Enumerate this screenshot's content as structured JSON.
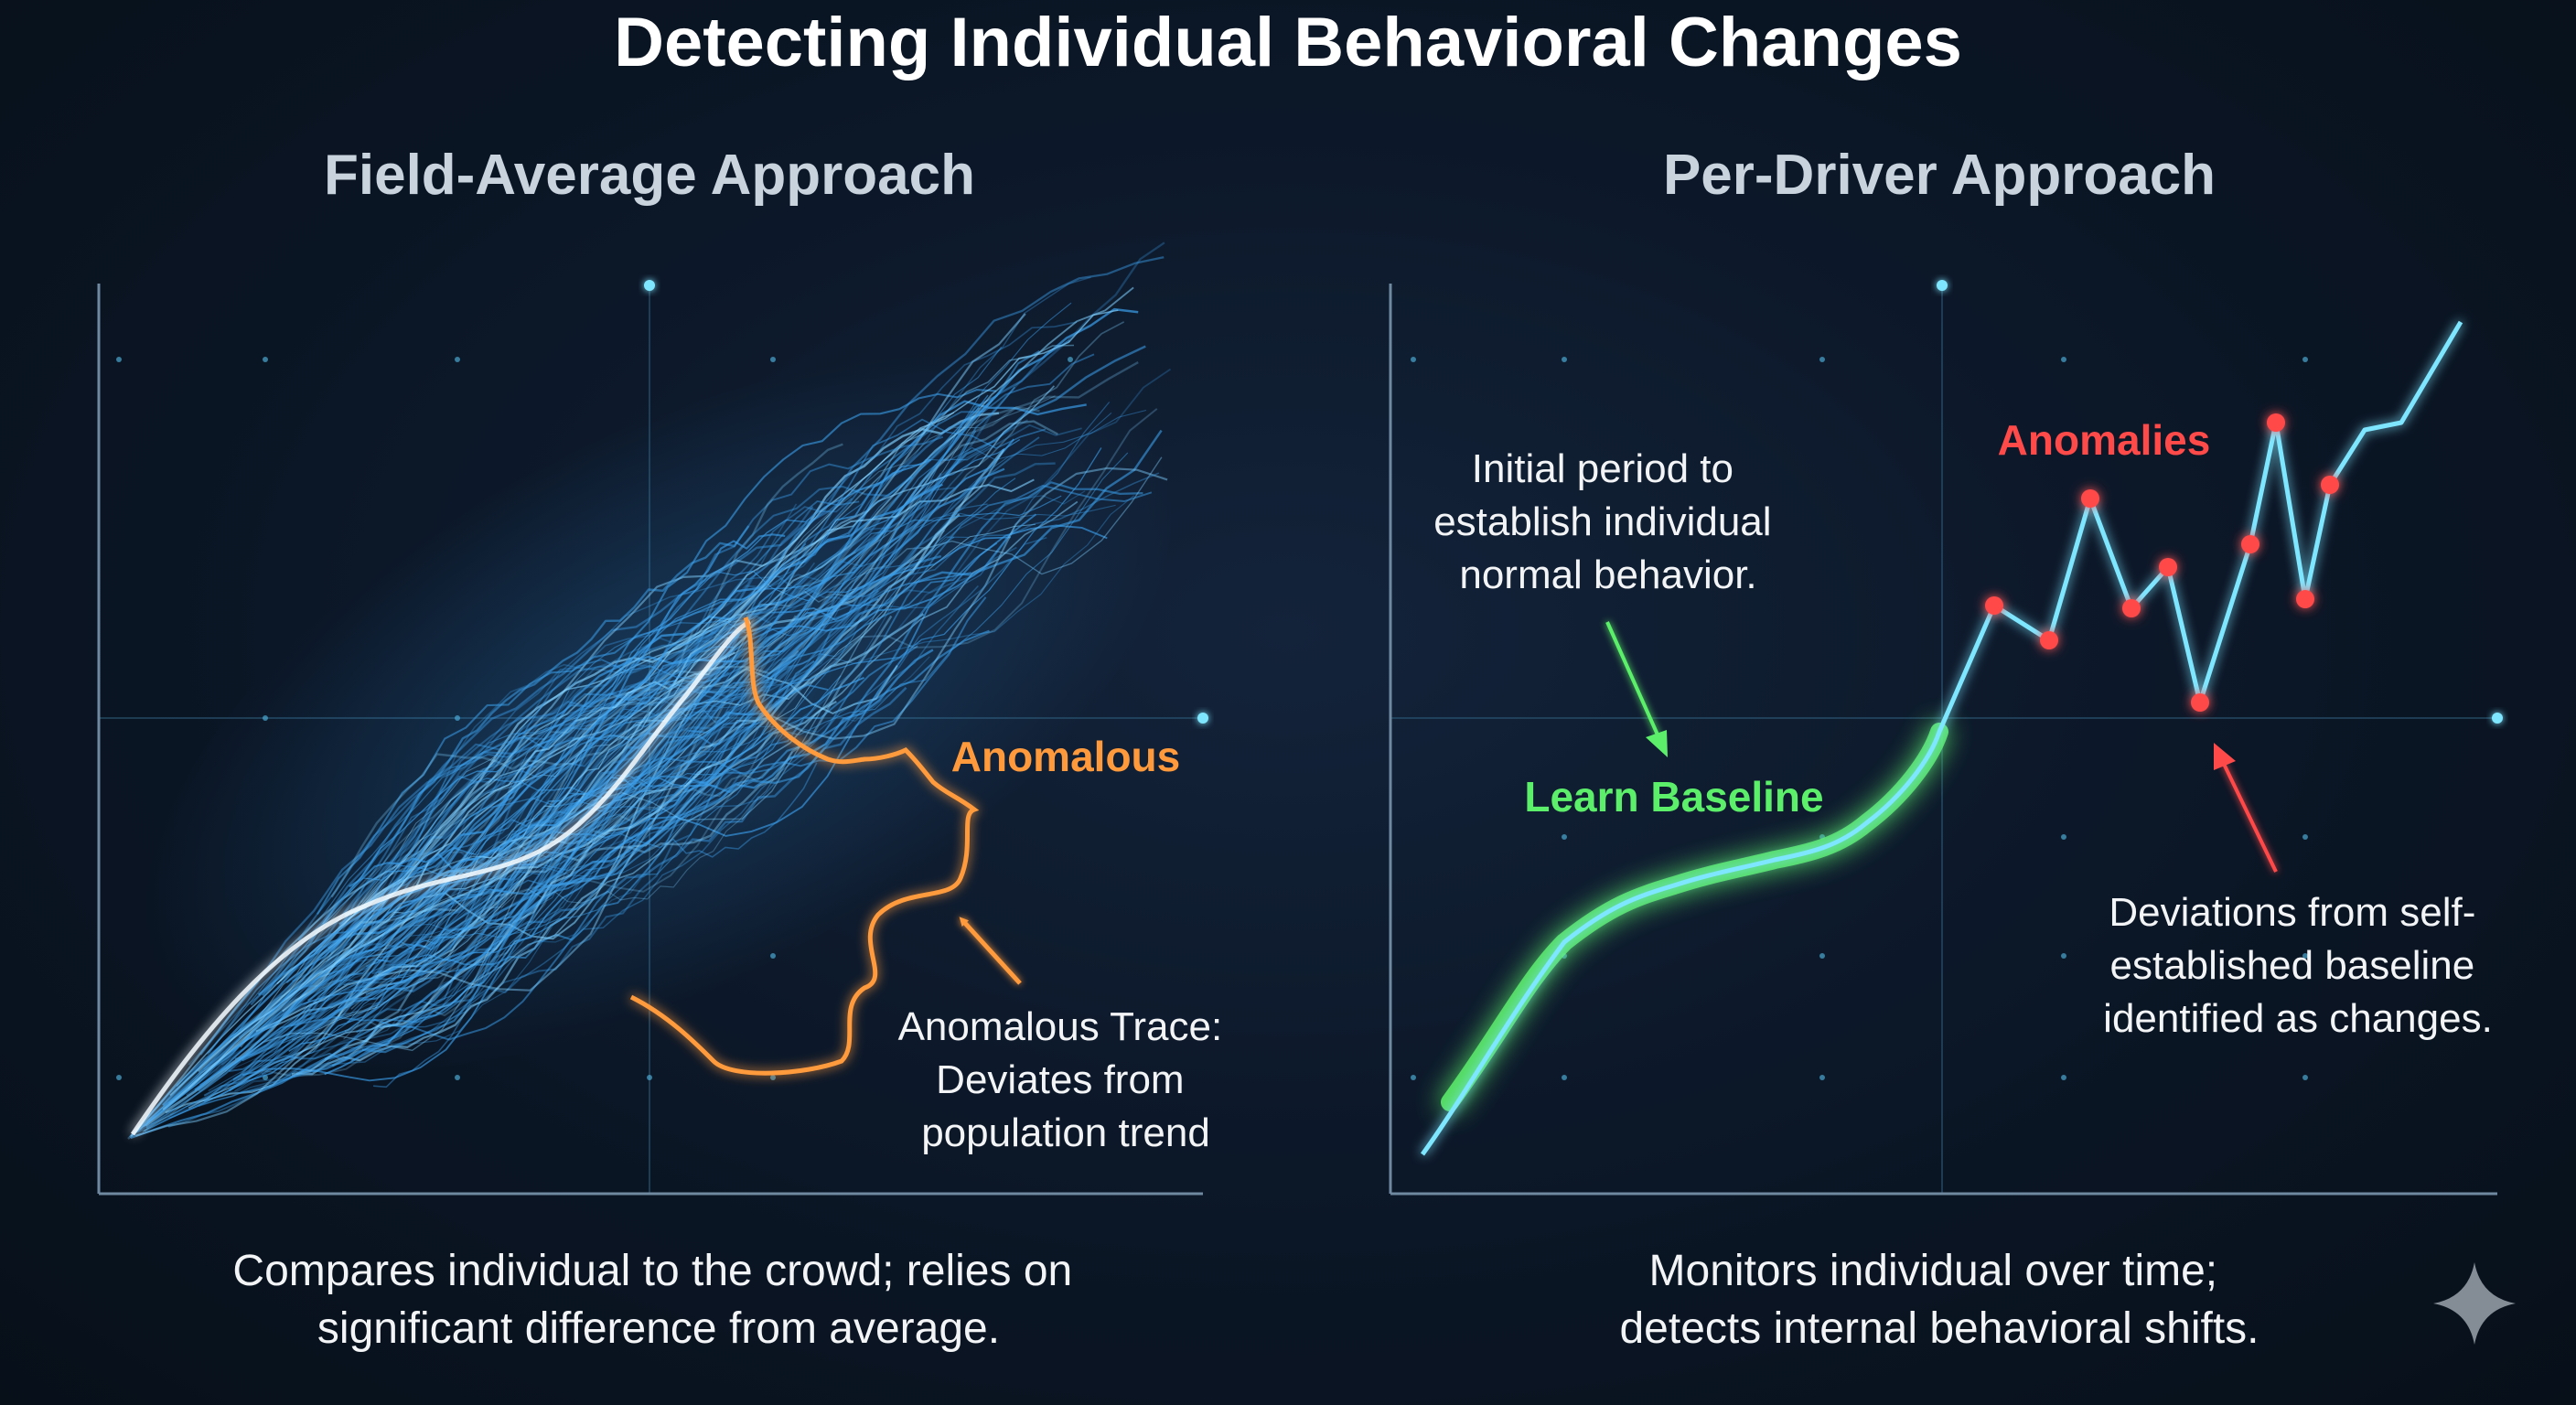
{
  "title": "Detecting Individual Behavioral Changes",
  "left_panel": {
    "heading": "Field-Average Approach",
    "anomaly_label": "Anomalous",
    "trace_note": [
      "Anomalous Trace:",
      "Deviates from",
      "population trend"
    ],
    "caption": [
      "Compares individual to the crowd; relies on",
      "significant difference from average."
    ]
  },
  "right_panel": {
    "heading": "Per-Driver Approach",
    "baseline_note": [
      "Initial period to",
      "establish individual",
      "normal behavior."
    ],
    "baseline_label": "Learn Baseline",
    "anomalies_label": "Anomalies",
    "deviation_note": [
      "Deviations from self-",
      "established baseline",
      "identified as changes."
    ],
    "caption": [
      "Monitors individual over time;",
      "detects internal behavioral shifts."
    ]
  },
  "colors": {
    "background": "#0b1626",
    "title_text": "#ffffff",
    "heading_text": "#c8d3de",
    "body_text": "#f2f4f6",
    "crowd_line": "#4fb6ff",
    "anomaly_orange": "#ff9a3c",
    "baseline_green": "#5cf06a",
    "signal_cyan": "#7fe6ff",
    "anomaly_red": "#ff4a4a",
    "divider": "#3fc7e6"
  },
  "icons": {
    "corner_mark": "sparkle-icon"
  }
}
